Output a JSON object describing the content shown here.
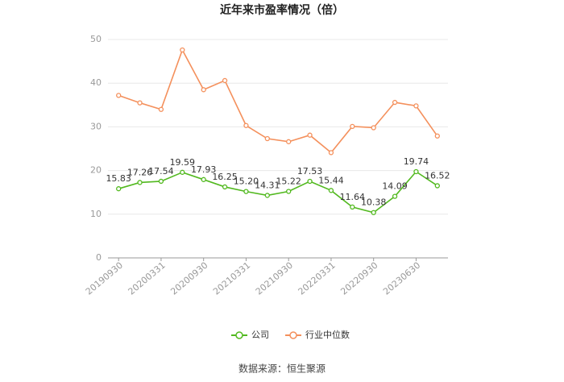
{
  "chart_data": {
    "type": "line",
    "title": "近年来市盈率情况（倍）",
    "categories": [
      "20190930",
      null,
      "20200331",
      null,
      "20200930",
      null,
      "20210331",
      null,
      "20210930",
      null,
      "20220331",
      null,
      "20220930",
      null,
      "20230630",
      null
    ],
    "series": [
      {
        "name": "公司",
        "color": "#52b91f",
        "values": [
          15.83,
          17.26,
          17.54,
          19.59,
          17.93,
          16.25,
          15.2,
          14.31,
          15.22,
          17.53,
          15.44,
          11.64,
          10.38,
          14.09,
          19.74,
          16.52
        ],
        "value_labels": [
          "15.83",
          "17.26",
          "17.54",
          "19.59",
          "17.93",
          "16.25",
          "15.20",
          "14.31",
          "15.22",
          "17.53",
          "15.44",
          "11.64",
          "10.38",
          "14.09",
          "19.74",
          "16.52"
        ]
      },
      {
        "name": "行业中位数",
        "color": "#f4905c",
        "values": [
          37.2,
          35.5,
          34,
          47.6,
          38.5,
          40.6,
          30.3,
          27.3,
          26.6,
          28.1,
          24.1,
          30.1,
          29.8,
          35.6,
          34.8,
          27.9
        ]
      }
    ],
    "ylim": [
      0,
      50
    ],
    "yticks": [
      0,
      10,
      20,
      30,
      40,
      50
    ],
    "grid": true,
    "source": "数据来源：恒生聚源"
  }
}
